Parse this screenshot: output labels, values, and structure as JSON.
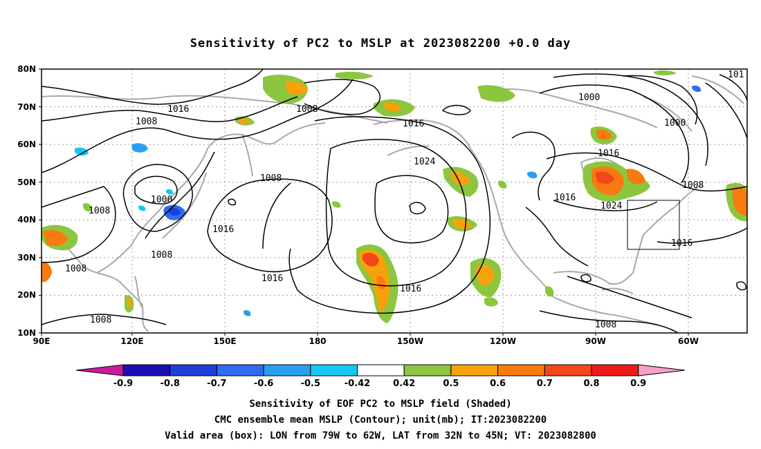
{
  "title": "Sensitivity of PC2 to MSLP at 2023082200 +0.0 day",
  "lat_labels": [
    "80N",
    "70N",
    "60N",
    "50N",
    "40N",
    "30N",
    "20N",
    "10N"
  ],
  "lon_labels": [
    "90E",
    "120E",
    "150E",
    "180",
    "150W",
    "120W",
    "90W",
    "60W"
  ],
  "contour_labels": {
    "c1": "1016",
    "c2": "1008",
    "c3": "1008",
    "c4": "1016",
    "c5": "1000",
    "c6": "1000",
    "c7": "1016",
    "c8": "1024",
    "c9": "1008",
    "c10": "1008",
    "c11": "1000",
    "c12": "1016",
    "c13": "1008",
    "c14": "1016",
    "c15": "1024",
    "c16": "1008",
    "c17": "1016",
    "c18": "1016",
    "c19": "1008",
    "c20": "1008",
    "c21": "1016",
    "c22": "1008",
    "c23": "101"
  },
  "colorbar": {
    "labels": [
      "-0.9",
      "-0.8",
      "-0.7",
      "-0.6",
      "-0.5",
      "-0.42",
      "0.42",
      "0.5",
      "0.6",
      "0.7",
      "0.8",
      "0.9"
    ],
    "colors": [
      "#1a0fb3",
      "#1f3fd9",
      "#2f6cf0",
      "#2a9ff0",
      "#17c6f5",
      "#ffffff",
      "#8cc63f",
      "#f7a20c",
      "#f97a10",
      "#f2471a",
      "#f01a1a"
    ],
    "left_arrow_color": "#cc1a9c",
    "right_arrow_color": "#f5a0c8"
  },
  "caption": {
    "line1": "Sensitivity of EOF PC2 to MSLP field (Shaded)",
    "line2": "CMC ensemble mean MSLP (Contour); unit(mb); IT:2023082200",
    "line3": "Valid area (box): LON from 79W to 62W, LAT from 32N to 45N; VT: 2023082800"
  }
}
